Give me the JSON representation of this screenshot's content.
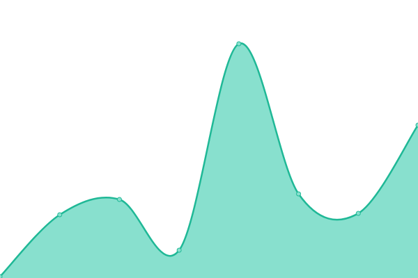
{
  "chart_data": {
    "type": "area",
    "x": [
      0,
      1,
      2,
      3,
      4,
      5,
      6,
      7
    ],
    "values": [
      2,
      91,
      113,
      40,
      337,
      121,
      93,
      220
    ],
    "xlim": [
      0,
      7
    ],
    "ylim": [
      0,
      400
    ],
    "color": "#1fb896",
    "fill": "#88e0ce",
    "smooth": true
  }
}
